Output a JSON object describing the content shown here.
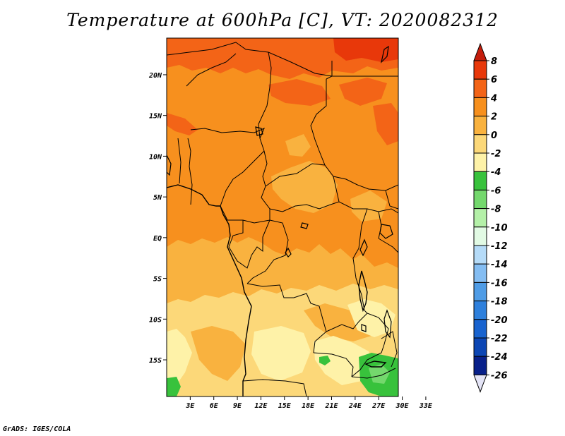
{
  "title": "Temperature at 600hPa [C], VT: 2020082312",
  "credit": "GrADS: IGES/COLA",
  "colors": {
    "boundary": "#000000",
    "background": "#ffffff"
  },
  "map": {
    "lat_range": [
      -19.5,
      24.5
    ],
    "lon_range": [
      0,
      29.5
    ],
    "lat_ticks": [
      {
        "value": 20,
        "label": "20N"
      },
      {
        "value": 15,
        "label": "15N"
      },
      {
        "value": 10,
        "label": "10N"
      },
      {
        "value": 5,
        "label": "5N"
      },
      {
        "value": 0,
        "label": "EQ"
      },
      {
        "value": -5,
        "label": "5S"
      },
      {
        "value": -10,
        "label": "10S"
      },
      {
        "value": -15,
        "label": "15S"
      }
    ],
    "lon_ticks": [
      {
        "value": 3,
        "label": "3E"
      },
      {
        "value": 6,
        "label": "6E"
      },
      {
        "value": 9,
        "label": "9E"
      },
      {
        "value": 12,
        "label": "12E"
      },
      {
        "value": 15,
        "label": "15E"
      },
      {
        "value": 18,
        "label": "18E"
      },
      {
        "value": 21,
        "label": "21E"
      },
      {
        "value": 24,
        "label": "24E"
      },
      {
        "value": 27,
        "label": "27E"
      },
      {
        "value": 30,
        "label": "30E"
      },
      {
        "value": 33,
        "label": "33E"
      }
    ]
  },
  "colorbar": {
    "bins": [
      {
        "low": 6,
        "high": 8,
        "color": "#e8380a"
      },
      {
        "low": 4,
        "high": 6,
        "color": "#f36417"
      },
      {
        "low": 2,
        "high": 4,
        "color": "#f7901e"
      },
      {
        "low": 0,
        "high": 2,
        "color": "#f9b23f"
      },
      {
        "low": -2,
        "high": 0,
        "color": "#fcd879"
      },
      {
        "low": -4,
        "high": -2,
        "color": "#fef2a8"
      },
      {
        "low": -6,
        "high": -4,
        "color": "#38c23c"
      },
      {
        "low": -8,
        "high": -6,
        "color": "#74d86d"
      },
      {
        "low": -10,
        "high": -8,
        "color": "#b4f0a8"
      },
      {
        "low": -12,
        "high": -10,
        "color": "#e2fae4"
      },
      {
        "low": -14,
        "high": -12,
        "color": "#b5dbf8"
      },
      {
        "low": -16,
        "high": -14,
        "color": "#84bdf2"
      },
      {
        "low": -18,
        "high": -16,
        "color": "#4f9ce6"
      },
      {
        "low": -20,
        "high": -18,
        "color": "#2e80dc"
      },
      {
        "low": -22,
        "high": -20,
        "color": "#1863cf"
      },
      {
        "low": -24,
        "high": -22,
        "color": "#0c46b4"
      },
      {
        "low": -26,
        "high": -24,
        "color": "#08208a"
      }
    ],
    "top_arrow_color": "#c41d0c",
    "bottom_arrow_color": "#e4e4f6",
    "labels": [
      "8",
      "6",
      "4",
      "2",
      "0",
      "-2",
      "-4",
      "-6",
      "-8",
      "-10",
      "-12",
      "-14",
      "-16",
      "-18",
      "-20",
      "-22",
      "-24",
      "-26"
    ]
  }
}
